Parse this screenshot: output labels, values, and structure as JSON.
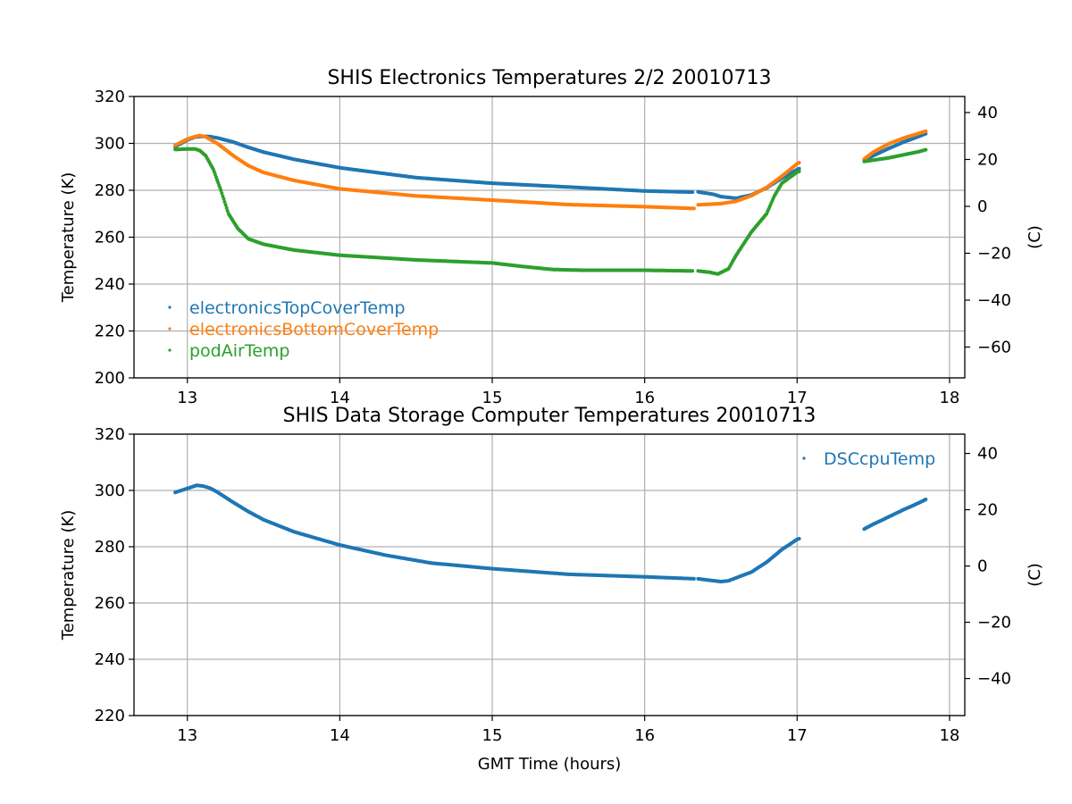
{
  "chart_data": [
    {
      "type": "scatter",
      "title": "SHIS Electronics Temperatures 2/2 20010713",
      "xlabel": "",
      "ylabel": "Temperature (K)",
      "ylabel_right": "(C)",
      "xlim": [
        12.65,
        18.1
      ],
      "ylim": [
        200,
        320
      ],
      "ylim_right_celsius": [
        -73.15,
        46.85
      ],
      "xticks": [
        13,
        14,
        15,
        16,
        17,
        18
      ],
      "yticks": [
        200,
        220,
        240,
        260,
        280,
        300,
        320
      ],
      "yticks_right": [
        -60,
        -40,
        -20,
        0,
        20,
        40
      ],
      "grid": true,
      "legend_position": "lower-left",
      "series": [
        {
          "name": "electronicsTopCoverTemp",
          "color": "#1f77b4",
          "points": [
            [
              12.92,
              298.6
            ],
            [
              13.0,
              301.5
            ],
            [
              13.05,
              302.7
            ],
            [
              13.1,
              303.0
            ],
            [
              13.15,
              302.9
            ],
            [
              13.2,
              302.3
            ],
            [
              13.3,
              300.6
            ],
            [
              13.4,
              298.3
            ],
            [
              13.5,
              296.3
            ],
            [
              13.7,
              293.2
            ],
            [
              14.0,
              289.6
            ],
            [
              14.5,
              285.4
            ],
            [
              15.0,
              283.0
            ],
            [
              15.5,
              281.4
            ],
            [
              16.0,
              279.7
            ],
            [
              16.32,
              279.2
            ],
            null,
            [
              16.35,
              279.3
            ],
            [
              16.45,
              278.3
            ],
            [
              16.5,
              277.3
            ],
            [
              16.6,
              276.6
            ],
            [
              16.7,
              278.0
            ],
            [
              16.8,
              281.0
            ],
            [
              16.9,
              285.2
            ],
            [
              17.0,
              288.8
            ],
            [
              17.02,
              289.5
            ],
            null,
            [
              17.44,
              292.7
            ],
            [
              17.5,
              294.8
            ],
            [
              17.6,
              297.8
            ],
            [
              17.7,
              300.6
            ],
            [
              17.8,
              303.0
            ],
            [
              17.85,
              304.3
            ]
          ]
        },
        {
          "name": "electronicsBottomCoverTemp",
          "color": "#ff7f0e",
          "points": [
            [
              12.92,
              299.2
            ],
            [
              13.0,
              301.8
            ],
            [
              13.05,
              302.9
            ],
            [
              13.08,
              303.3
            ],
            [
              13.12,
              302.8
            ],
            [
              13.2,
              299.8
            ],
            [
              13.3,
              294.8
            ],
            [
              13.4,
              290.5
            ],
            [
              13.5,
              287.6
            ],
            [
              13.7,
              284.2
            ],
            [
              14.0,
              280.6
            ],
            [
              14.5,
              277.6
            ],
            [
              15.0,
              275.8
            ],
            [
              15.5,
              273.9
            ],
            [
              16.0,
              273.0
            ],
            [
              16.3,
              272.3
            ],
            [
              16.33,
              272.3
            ],
            null,
            [
              16.35,
              273.8
            ],
            [
              16.5,
              274.3
            ],
            [
              16.6,
              275.3
            ],
            [
              16.7,
              277.7
            ],
            [
              16.8,
              281.2
            ],
            [
              16.9,
              286.0
            ],
            [
              17.0,
              291.3
            ],
            [
              17.02,
              292.0
            ],
            null,
            [
              17.44,
              293.3
            ],
            [
              17.5,
              296.3
            ],
            [
              17.6,
              299.8
            ],
            [
              17.7,
              302.3
            ],
            [
              17.8,
              304.3
            ],
            [
              17.85,
              305.3
            ]
          ]
        },
        {
          "name": "podAirTemp",
          "color": "#2ca02c",
          "points": [
            [
              12.92,
              297.4
            ],
            [
              13.0,
              297.6
            ],
            [
              13.05,
              297.6
            ],
            [
              13.08,
              297.0
            ],
            [
              13.12,
              294.8
            ],
            [
              13.17,
              289.0
            ],
            [
              13.22,
              280.0
            ],
            [
              13.27,
              270.0
            ],
            [
              13.33,
              263.8
            ],
            [
              13.4,
              259.3
            ],
            [
              13.5,
              257.0
            ],
            [
              13.7,
              254.5
            ],
            [
              14.0,
              252.3
            ],
            [
              14.5,
              250.3
            ],
            [
              15.0,
              249.0
            ],
            [
              15.2,
              247.5
            ],
            [
              15.4,
              246.2
            ],
            [
              15.6,
              245.9
            ],
            [
              16.0,
              245.9
            ],
            [
              16.32,
              245.6
            ],
            null,
            [
              16.35,
              245.6
            ],
            [
              16.42,
              245.1
            ],
            [
              16.48,
              244.3
            ],
            [
              16.55,
              246.5
            ],
            [
              16.6,
              252.3
            ],
            [
              16.7,
              262.2
            ],
            [
              16.8,
              270.0
            ],
            [
              16.85,
              277.5
            ],
            [
              16.9,
              283.0
            ],
            [
              17.0,
              287.8
            ],
            [
              17.02,
              288.2
            ],
            null,
            [
              17.44,
              292.3
            ],
            [
              17.6,
              293.8
            ],
            [
              17.8,
              296.5
            ],
            [
              17.85,
              297.4
            ]
          ]
        }
      ]
    },
    {
      "type": "scatter",
      "title": "SHIS Data Storage Computer Temperatures 20010713",
      "xlabel": "GMT Time (hours)",
      "ylabel": "Temperature (K)",
      "ylabel_right": "(C)",
      "xlim": [
        12.65,
        18.1
      ],
      "ylim": [
        220,
        320
      ],
      "ylim_right_celsius": [
        -53.15,
        46.85
      ],
      "xticks": [
        13,
        14,
        15,
        16,
        17,
        18
      ],
      "yticks": [
        220,
        240,
        260,
        280,
        300,
        320
      ],
      "yticks_right": [
        -40,
        -20,
        0,
        20,
        40
      ],
      "grid": true,
      "legend_position": "upper-right",
      "series": [
        {
          "name": "DSCcpuTemp",
          "color": "#1f77b4",
          "points": [
            [
              12.92,
              299.3
            ],
            [
              13.0,
              300.7
            ],
            [
              13.06,
              301.8
            ],
            [
              13.1,
              301.6
            ],
            [
              13.15,
              300.8
            ],
            [
              13.2,
              299.3
            ],
            [
              13.3,
              295.8
            ],
            [
              13.4,
              292.5
            ],
            [
              13.5,
              289.6
            ],
            [
              13.7,
              285.3
            ],
            [
              14.0,
              280.6
            ],
            [
              14.3,
              277.0
            ],
            [
              14.6,
              274.2
            ],
            [
              15.0,
              272.2
            ],
            [
              15.5,
              270.2
            ],
            [
              16.0,
              269.3
            ],
            [
              16.33,
              268.6
            ],
            null,
            [
              16.35,
              268.6
            ],
            [
              16.5,
              267.6
            ],
            [
              16.55,
              267.9
            ],
            [
              16.7,
              271.0
            ],
            [
              16.8,
              274.5
            ],
            [
              16.9,
              279.0
            ],
            [
              17.0,
              282.6
            ],
            [
              17.02,
              283.0
            ],
            null,
            [
              17.44,
              286.3
            ],
            [
              17.5,
              288.0
            ],
            [
              17.6,
              290.6
            ],
            [
              17.7,
              293.2
            ],
            [
              17.8,
              295.6
            ],
            [
              17.85,
              297.0
            ]
          ]
        }
      ]
    }
  ]
}
